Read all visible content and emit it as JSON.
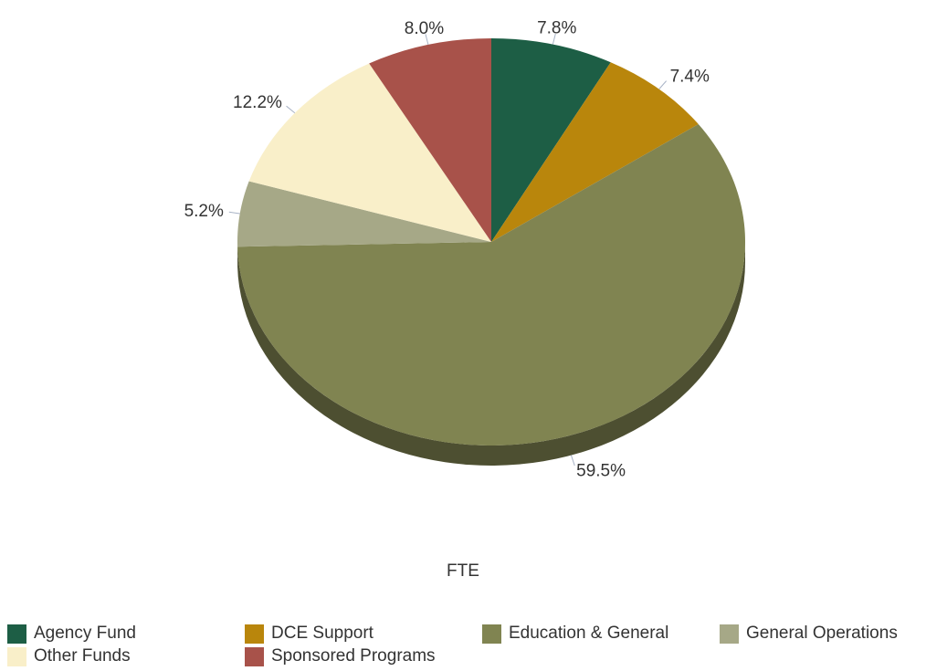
{
  "chart_data": {
    "type": "pie",
    "title": "",
    "xlabel": "FTE",
    "ylabel": "",
    "legend_position": "bottom",
    "three_d": true,
    "categories": [
      "Agency Fund",
      "DCE Support",
      "Education & General",
      "General Operations",
      "Other Funds",
      "Sponsored Programs"
    ],
    "values": [
      7.8,
      7.4,
      59.5,
      5.2,
      12.2,
      8.0
    ],
    "value_labels": [
      "7.8%",
      "7.4%",
      "59.5%",
      "5.2%",
      "12.2%",
      "8.0%"
    ],
    "colors": [
      "#1d5e45",
      "#b9860c",
      "#808451",
      "#a6a887",
      "#f9efc9",
      "#a8524a"
    ]
  }
}
